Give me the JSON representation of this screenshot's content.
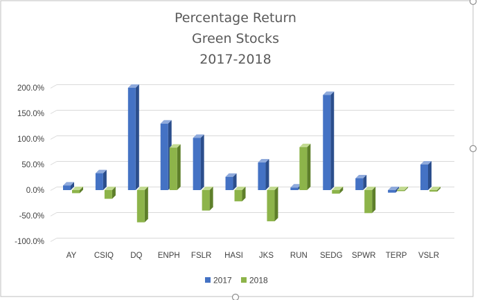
{
  "chart_data": {
    "type": "bar",
    "title": [
      "Percentage Return",
      "Green Stocks",
      "2017-2018"
    ],
    "categories": [
      "AY",
      "CSIQ",
      "DQ",
      "ENPH",
      "FSLR",
      "HASI",
      "JKS",
      "RUN",
      "SEDG",
      "SPWR",
      "TERP",
      "VSLR"
    ],
    "series": [
      {
        "name": "2017",
        "values": [
          9,
          33,
          200,
          130,
          102,
          26,
          54,
          5,
          186,
          23,
          -5,
          50
        ]
      },
      {
        "name": "2018",
        "values": [
          -6,
          -17,
          -63,
          83,
          -40,
          -22,
          -61,
          84,
          -7,
          -45,
          -2,
          -3
        ]
      }
    ],
    "ylim": [
      -100,
      200
    ],
    "yticks": [
      200,
      150,
      100,
      50,
      0,
      -50,
      -100
    ],
    "ytick_labels": [
      "200.0%",
      "150.0%",
      "100.0%",
      "50.0%",
      "0.0%",
      "-50.0%",
      "-100.0%"
    ],
    "grid": true,
    "legend_position": "bottom",
    "colors": {
      "2017_front": "#4472C4",
      "2017_side": "#2B4E8C",
      "2017_top": "#8FAADC",
      "2018_front": "#8DB44A",
      "2018_side": "#5E7F2A",
      "2018_top": "#C3DB92",
      "grid": "#D9D9D9"
    }
  }
}
